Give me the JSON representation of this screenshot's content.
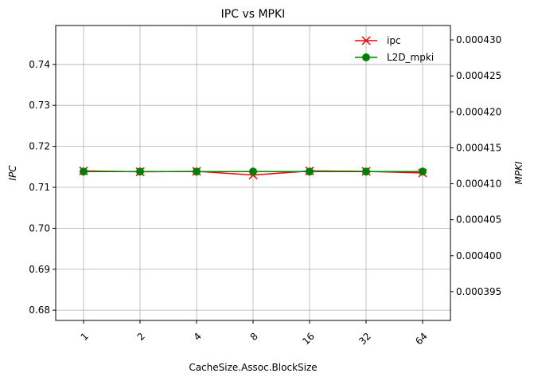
{
  "chart_data": {
    "type": "line",
    "title": "IPC vs MPKI",
    "xlabel": "CacheSize.Assoc.BlockSize",
    "ylabel_left": "IPC",
    "ylabel_right": "MPKI",
    "categories": [
      "1",
      "2",
      "4",
      "8",
      "16",
      "32",
      "64"
    ],
    "left_axis": {
      "ylim": [
        0.6775,
        0.7495
      ],
      "ticks": [
        0.68,
        0.69,
        0.7,
        0.71,
        0.72,
        0.73,
        0.74
      ],
      "tick_labels": [
        "0.68",
        "0.69",
        "0.70",
        "0.71",
        "0.72",
        "0.73",
        "0.74"
      ]
    },
    "right_axis": {
      "ylim": [
        0.000391,
        0.000432
      ],
      "ticks": [
        0.000395,
        0.0004,
        0.000405,
        0.00041,
        0.000415,
        0.00042,
        0.000425,
        0.00043
      ],
      "tick_labels": [
        "0.000395",
        "0.000400",
        "0.000405",
        "0.000410",
        "0.000415",
        "0.000420",
        "0.000425",
        "0.000430"
      ]
    },
    "series": [
      {
        "name": "ipc",
        "axis": "left",
        "color": "#ff0000",
        "marker": "x",
        "values": [
          0.714,
          0.7138,
          0.7139,
          0.713,
          0.714,
          0.7139,
          0.7135
        ]
      },
      {
        "name": "L2D_mpki",
        "axis": "right",
        "color": "#008000",
        "marker": "o",
        "values": [
          0.0004117,
          0.0004117,
          0.0004117,
          0.0004117,
          0.0004117,
          0.0004117,
          0.0004117
        ]
      }
    ],
    "grid": true,
    "legend_placement": "top-right"
  }
}
